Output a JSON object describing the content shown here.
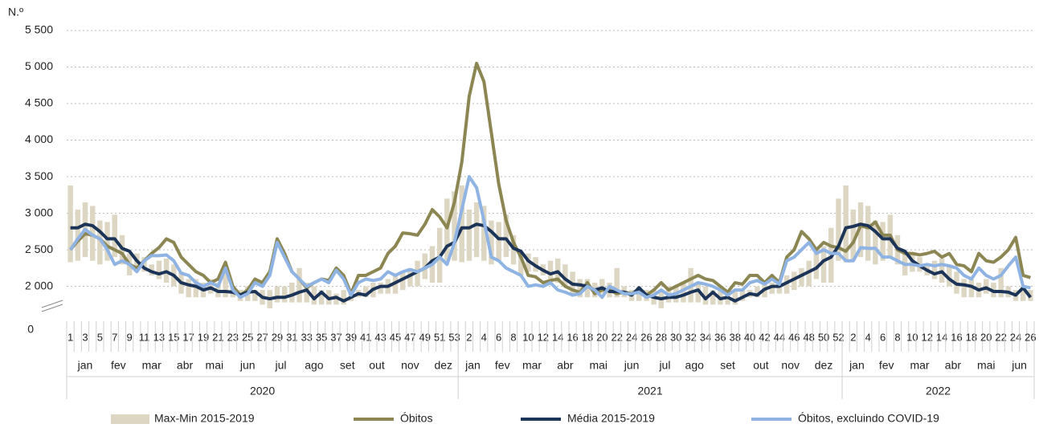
{
  "chart_data": {
    "type": "line",
    "y_label": "N.º",
    "ylim": [
      1600,
      5500
    ],
    "yticks": [
      0,
      {
        "value": 2000,
        "label": "2 000"
      },
      {
        "value": 2500,
        "label": "2 500"
      },
      {
        "value": 3000,
        "label": "3 000"
      },
      {
        "value": 3500,
        "label": "3 500"
      },
      {
        "value": 4000,
        "label": "4 000"
      },
      {
        "value": 4500,
        "label": "4 500"
      },
      {
        "value": 5000,
        "label": "5 000"
      },
      {
        "value": 5500,
        "label": "5 500"
      }
    ],
    "grid": true,
    "categories": [
      1,
      null,
      3,
      null,
      5,
      null,
      7,
      null,
      9,
      null,
      11,
      null,
      13,
      null,
      15,
      null,
      17,
      null,
      19,
      null,
      21,
      null,
      23,
      null,
      25,
      null,
      27,
      null,
      29,
      null,
      31,
      null,
      33,
      null,
      35,
      null,
      37,
      null,
      39,
      null,
      41,
      null,
      43,
      null,
      45,
      null,
      47,
      null,
      49,
      null,
      51,
      null,
      53,
      null,
      2,
      null,
      4,
      null,
      6,
      null,
      8,
      null,
      10,
      null,
      12,
      null,
      14,
      null,
      16,
      null,
      18,
      null,
      20,
      null,
      22,
      null,
      24,
      null,
      26,
      null,
      28,
      null,
      30,
      null,
      32,
      null,
      34,
      null,
      36,
      null,
      38,
      null,
      40,
      null,
      42,
      null,
      44,
      null,
      46,
      null,
      48,
      null,
      50,
      null,
      52,
      null,
      2,
      null,
      4,
      null,
      6,
      null,
      8,
      null,
      10,
      null,
      12,
      null,
      14,
      null,
      16,
      null,
      18,
      null,
      20,
      null,
      22,
      null,
      24,
      null,
      26
    ],
    "months": [
      {
        "label": "jan",
        "from": 0,
        "to": 4
      },
      {
        "label": "fev",
        "from": 5,
        "to": 8
      },
      {
        "label": "mar",
        "from": 9,
        "to": 13
      },
      {
        "label": "abr",
        "from": 14,
        "to": 17
      },
      {
        "label": "mai",
        "from": 18,
        "to": 21
      },
      {
        "label": "jun",
        "from": 22,
        "to": 26
      },
      {
        "label": "jul",
        "from": 27,
        "to": 30
      },
      {
        "label": "ago",
        "from": 31,
        "to": 35
      },
      {
        "label": "set",
        "from": 36,
        "to": 39
      },
      {
        "label": "out",
        "from": 40,
        "to": 43
      },
      {
        "label": "nov",
        "from": 44,
        "to": 48
      },
      {
        "label": "dez",
        "from": 49,
        "to": 52
      },
      {
        "label": "jan",
        "from": 53,
        "to": 56
      },
      {
        "label": "fev",
        "from": 57,
        "to": 60
      },
      {
        "label": "mar",
        "from": 61,
        "to": 64
      },
      {
        "label": "abr",
        "from": 65,
        "to": 69
      },
      {
        "label": "mai",
        "from": 70,
        "to": 73
      },
      {
        "label": "jun",
        "from": 74,
        "to": 78
      },
      {
        "label": "jul",
        "from": 79,
        "to": 82
      },
      {
        "label": "ago",
        "from": 83,
        "to": 86
      },
      {
        "label": "set",
        "from": 87,
        "to": 91
      },
      {
        "label": "out",
        "from": 92,
        "to": 95
      },
      {
        "label": "nov",
        "from": 96,
        "to": 99
      },
      {
        "label": "dez",
        "from": 100,
        "to": 104
      },
      {
        "label": "jan",
        "from": 105,
        "to": 108
      },
      {
        "label": "fev",
        "from": 109,
        "to": 112
      },
      {
        "label": "mar",
        "from": 113,
        "to": 117
      },
      {
        "label": "abr",
        "from": 118,
        "to": 121
      },
      {
        "label": "mai",
        "from": 122,
        "to": 126
      },
      {
        "label": "jun",
        "from": 127,
        "to": 130
      }
    ],
    "years": [
      {
        "label": "2020",
        "from": 0,
        "to": 52
      },
      {
        "label": "2021",
        "from": 53,
        "to": 104
      },
      {
        "label": "2022",
        "from": 105,
        "to": 130
      }
    ],
    "range": {
      "name": "Max-Min 2015-2019",
      "color": "#dcd6c2",
      "max": [
        3380,
        3050,
        3150,
        3100,
        2900,
        2880,
        2980,
        2700,
        2450,
        2450,
        2400,
        2300,
        2350,
        2380,
        2300,
        2200,
        2100,
        2100,
        2050,
        2100,
        2050,
        2250,
        2000,
        1950,
        2000,
        1950,
        1950,
        1950,
        2000,
        2000,
        2050,
        2250,
        2050,
        2000,
        1950,
        1950,
        1900,
        1950,
        1950,
        1950,
        2000,
        2050,
        2050,
        2100,
        2150,
        2200,
        2250,
        2350,
        2450,
        2550,
        2800,
        3200,
        3300,
        3380,
        3050,
        3150,
        3100,
        2900,
        2880,
        2980,
        2700,
        2450,
        2450,
        2400,
        2300,
        2350,
        2380,
        2300,
        2200,
        2100,
        2100,
        2050,
        2100,
        2050,
        2250,
        2000,
        1950,
        2000,
        1950,
        1950,
        1950,
        2000,
        2000,
        2050,
        2250,
        2050,
        2000,
        1950,
        1950,
        1900,
        1950,
        1950,
        1950,
        2000,
        2050,
        2050,
        2100,
        2150,
        2200,
        2250,
        2350,
        2450,
        2550,
        2800,
        3200,
        3380,
        3050,
        3150,
        3100,
        2900,
        2880,
        2980,
        2700,
        2450,
        2450,
        2400,
        2300,
        2350,
        2380,
        2300,
        2200,
        2100,
        2100,
        2050,
        2100,
        2050,
        2250,
        2000,
        1950,
        2000,
        1950
      ],
      "min": [
        2330,
        2350,
        2400,
        2350,
        2300,
        2350,
        2400,
        2300,
        2150,
        2200,
        2200,
        2150,
        2100,
        2050,
        2000,
        1900,
        1850,
        1850,
        1850,
        1900,
        1850,
        1850,
        1850,
        1800,
        1800,
        1800,
        1750,
        1700,
        1780,
        1780,
        1780,
        1780,
        1780,
        1750,
        1750,
        1750,
        1750,
        1750,
        1800,
        1850,
        1850,
        1850,
        1900,
        1900,
        1900,
        1950,
        2000,
        2000,
        2100,
        2050,
        2050,
        2350,
        2350,
        2330,
        2350,
        2400,
        2350,
        2300,
        2350,
        2400,
        2300,
        2150,
        2200,
        2200,
        2150,
        2100,
        2050,
        2000,
        1900,
        1850,
        1850,
        1850,
        1900,
        1850,
        1850,
        1850,
        1800,
        1800,
        1800,
        1750,
        1700,
        1780,
        1780,
        1780,
        1780,
        1780,
        1750,
        1750,
        1750,
        1750,
        1750,
        1800,
        1850,
        1850,
        1850,
        1900,
        1900,
        1900,
        1950,
        2000,
        2000,
        2100,
        2050,
        2050,
        2350,
        2330,
        2350,
        2400,
        2350,
        2300,
        2350,
        2400,
        2300,
        2150,
        2200,
        2200,
        2150,
        2100,
        2050,
        2000,
        1900,
        1850,
        1850,
        1850,
        1900,
        1850,
        1850,
        1850,
        1800,
        1800,
        1800
      ]
    },
    "series": [
      {
        "name": "Óbitos",
        "color": "#8c8653",
        "values": [
          2500,
          2620,
          2720,
          2700,
          2650,
          2550,
          2500,
          2450,
          2300,
          2250,
          2350,
          2450,
          2530,
          2650,
          2600,
          2400,
          2300,
          2200,
          2150,
          2050,
          2100,
          2330,
          2000,
          1880,
          1950,
          2100,
          2050,
          2200,
          2650,
          2450,
          2200,
          2100,
          1980,
          2050,
          2100,
          2080,
          2250,
          2150,
          1900,
          2150,
          2150,
          2200,
          2250,
          2450,
          2550,
          2730,
          2720,
          2700,
          2850,
          3050,
          2950,
          2800,
          3150,
          3700,
          4600,
          5050,
          4800,
          4100,
          3400,
          2900,
          2600,
          2400,
          2150,
          2130,
          2050,
          2080,
          2100,
          2000,
          1950,
          1920,
          2050,
          1900,
          1950,
          1950,
          1900,
          1920,
          1900,
          1950,
          1880,
          1950,
          2050,
          1950,
          2000,
          2050,
          2100,
          2150,
          2100,
          2080,
          2000,
          1920,
          2050,
          2030,
          2150,
          2150,
          2050,
          2150,
          2050,
          2400,
          2500,
          2750,
          2650,
          2500,
          2600,
          2550,
          2530,
          2480,
          2600,
          2830,
          2800,
          2880,
          2700,
          2700,
          2500,
          2450,
          2450,
          2430,
          2450,
          2480,
          2400,
          2450,
          2300,
          2280,
          2200,
          2450,
          2350,
          2330,
          2400,
          2500,
          2670,
          2150,
          2120
        ]
      },
      {
        "name": "Média 2015-2019",
        "color": "#1c3458",
        "values": [
          2800,
          2800,
          2850,
          2830,
          2750,
          2650,
          2650,
          2520,
          2480,
          2350,
          2250,
          2200,
          2170,
          2200,
          2150,
          2050,
          2020,
          2000,
          1950,
          1980,
          1930,
          1930,
          1920,
          1880,
          1920,
          1930,
          1850,
          1830,
          1850,
          1850,
          1880,
          1920,
          1950,
          1830,
          1920,
          1830,
          1850,
          1800,
          1850,
          1900,
          1880,
          1960,
          2000,
          2000,
          2050,
          2100,
          2150,
          2200,
          2250,
          2350,
          2400,
          2550,
          2600,
          2800,
          2800,
          2850,
          2830,
          2750,
          2650,
          2650,
          2520,
          2480,
          2350,
          2280,
          2220,
          2170,
          2200,
          2100,
          2030,
          2020,
          2000,
          1950,
          1980,
          1930,
          1930,
          1920,
          1880,
          1980,
          1880,
          1850,
          1830,
          1850,
          1850,
          1880,
          1920,
          1950,
          1830,
          1920,
          1830,
          1850,
          1800,
          1850,
          1900,
          1880,
          1960,
          2000,
          2000,
          2050,
          2100,
          2150,
          2200,
          2250,
          2350,
          2400,
          2550,
          2800,
          2820,
          2850,
          2830,
          2750,
          2650,
          2650,
          2520,
          2480,
          2350,
          2280,
          2220,
          2170,
          2200,
          2100,
          2030,
          2020,
          2000,
          1950,
          1980,
          1930,
          1930,
          1920,
          1880,
          1980,
          1850
        ]
      },
      {
        "name": "Óbitos, excluindo COVID-19",
        "color": "#8fb4e3",
        "values": [
          2500,
          2650,
          2780,
          2700,
          2650,
          2500,
          2300,
          2350,
          2300,
          2200,
          2350,
          2420,
          2420,
          2430,
          2350,
          2180,
          2150,
          2050,
          2000,
          2050,
          2000,
          2250,
          1950,
          1850,
          1900,
          2050,
          2000,
          2150,
          2600,
          2400,
          2200,
          2100,
          2000,
          2050,
          2100,
          2050,
          2220,
          2100,
          1880,
          2050,
          2100,
          2080,
          2100,
          2200,
          2150,
          2200,
          2230,
          2200,
          2250,
          2300,
          2400,
          2300,
          2600,
          3050,
          3500,
          3350,
          2900,
          2400,
          2350,
          2250,
          2200,
          2150,
          2000,
          2020,
          2000,
          2050,
          1950,
          1920,
          1880,
          1900,
          2000,
          1950,
          1850,
          2000,
          1950,
          1900,
          1900,
          1920,
          1850,
          1880,
          1950,
          1880,
          1900,
          1950,
          2000,
          2050,
          2030,
          2000,
          1950,
          1880,
          1950,
          1950,
          2050,
          2080,
          2030,
          2100,
          2030,
          2350,
          2400,
          2500,
          2600,
          2450,
          2500,
          2450,
          2450,
          2350,
          2350,
          2530,
          2520,
          2520,
          2400,
          2400,
          2350,
          2300,
          2300,
          2280,
          2300,
          2280,
          2300,
          2280,
          2250,
          2150,
          2100,
          2250,
          2150,
          2100,
          2150,
          2280,
          2400,
          2000,
          1980
        ]
      }
    ]
  }
}
